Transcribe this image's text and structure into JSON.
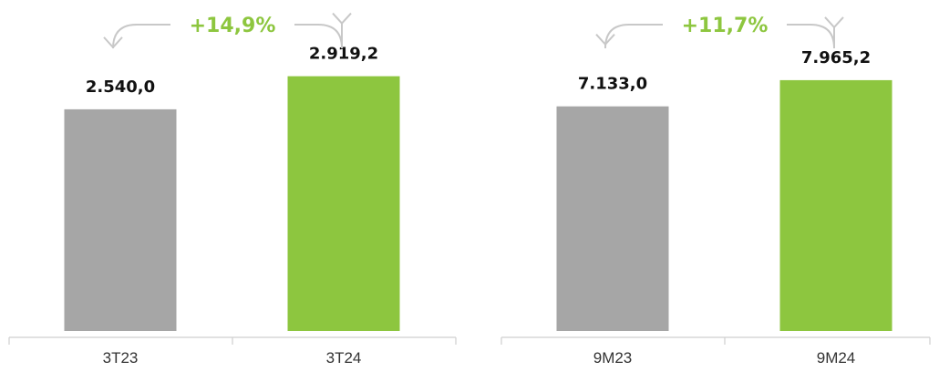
{
  "colors": {
    "prior": "#a6a6a6",
    "current": "#8dc63f",
    "growth": "#8dc63f",
    "arrow": "#c8c8c8",
    "axis": "#cfcfcf"
  },
  "chart_data": [
    {
      "type": "bar",
      "categories": [
        "3T23",
        "3T24"
      ],
      "values": [
        2540.0,
        2919.2
      ],
      "value_labels": [
        "2.540,0",
        "2.919,2"
      ],
      "growth_label": "+14,9%",
      "ylim": [
        0,
        3500
      ],
      "grid": false
    },
    {
      "type": "bar",
      "categories": [
        "9M23",
        "9M24"
      ],
      "values": [
        7133.0,
        7965.2
      ],
      "value_labels": [
        "7.133,0",
        "7.965,2"
      ],
      "growth_label": "+11,7%",
      "ylim": [
        0,
        9700
      ],
      "grid": false
    }
  ]
}
